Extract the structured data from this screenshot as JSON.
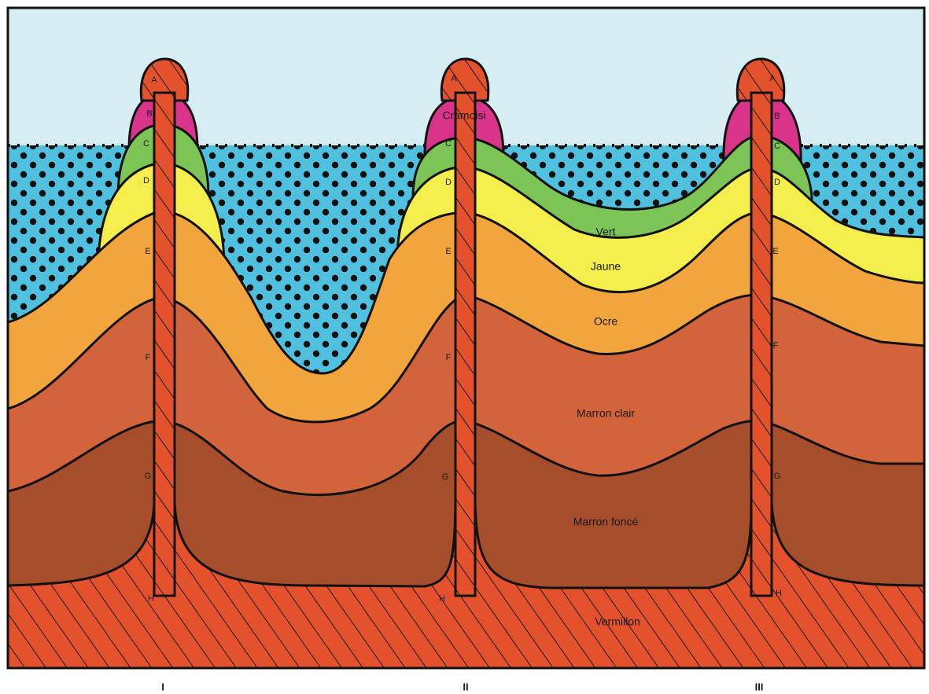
{
  "diagram": {
    "columns": [
      {
        "label": "I",
        "markers": [
          "A",
          "B",
          "C",
          "D",
          "E",
          "F",
          "G",
          "H"
        ]
      },
      {
        "label": "II",
        "markers": [
          "A",
          "C",
          "D",
          "E",
          "F",
          "G",
          "H"
        ]
      },
      {
        "label": "III",
        "markers": [
          "A",
          "B",
          "C",
          "D",
          "E",
          "F",
          "G",
          "H"
        ]
      }
    ],
    "layers": [
      "Cramoisi",
      "Vert",
      "Jaune",
      "Ocre",
      "Marron clair",
      "Marron foncé",
      "Vermillon"
    ]
  }
}
